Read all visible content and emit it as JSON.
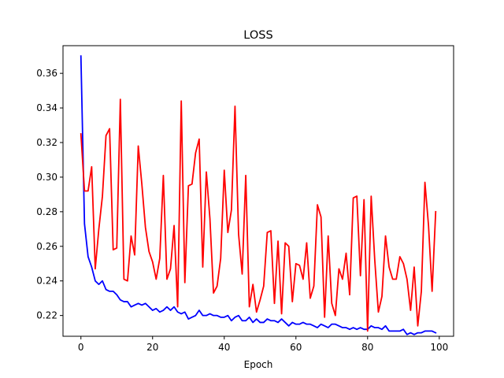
{
  "chart_data": {
    "type": "line",
    "title": "LOSS",
    "xlabel": "Epoch",
    "ylabel": "",
    "xlim": [
      -5,
      104
    ],
    "ylim": [
      0.208,
      0.376
    ],
    "xticks": [
      0,
      20,
      40,
      60,
      80,
      100
    ],
    "yticks": [
      0.22,
      0.24,
      0.26,
      0.28,
      0.3,
      0.32,
      0.34,
      0.36
    ],
    "ytick_labels": [
      "0.22",
      "0.24",
      "0.26",
      "0.28",
      "0.30",
      "0.32",
      "0.34",
      "0.36"
    ],
    "grid": false,
    "legend": false,
    "series": [
      {
        "color": "#0000ff",
        "x": [
          0,
          1,
          2,
          3,
          4,
          5,
          6,
          7,
          8,
          9,
          10,
          11,
          12,
          13,
          14,
          15,
          16,
          17,
          18,
          19,
          20,
          21,
          22,
          23,
          24,
          25,
          26,
          27,
          28,
          29,
          30,
          31,
          32,
          33,
          34,
          35,
          36,
          37,
          38,
          39,
          40,
          41,
          42,
          43,
          44,
          45,
          46,
          47,
          48,
          49,
          50,
          51,
          52,
          53,
          54,
          55,
          56,
          57,
          58,
          59,
          60,
          61,
          62,
          63,
          64,
          65,
          66,
          67,
          68,
          69,
          70,
          71,
          72,
          73,
          74,
          75,
          76,
          77,
          78,
          79,
          80,
          81,
          82,
          83,
          84,
          85,
          86,
          87,
          88,
          89,
          90,
          91,
          92,
          93,
          94,
          95,
          96,
          97,
          98,
          99
        ],
        "values": [
          0.37,
          0.273,
          0.254,
          0.248,
          0.24,
          0.238,
          0.24,
          0.235,
          0.234,
          0.234,
          0.232,
          0.229,
          0.228,
          0.228,
          0.225,
          0.226,
          0.227,
          0.226,
          0.227,
          0.225,
          0.223,
          0.224,
          0.222,
          0.223,
          0.225,
          0.223,
          0.225,
          0.222,
          0.221,
          0.222,
          0.218,
          0.219,
          0.22,
          0.223,
          0.22,
          0.22,
          0.221,
          0.22,
          0.22,
          0.219,
          0.219,
          0.22,
          0.217,
          0.219,
          0.22,
          0.217,
          0.217,
          0.219,
          0.216,
          0.218,
          0.216,
          0.216,
          0.218,
          0.217,
          0.217,
          0.216,
          0.218,
          0.216,
          0.214,
          0.216,
          0.215,
          0.215,
          0.216,
          0.215,
          0.215,
          0.214,
          0.213,
          0.215,
          0.214,
          0.213,
          0.215,
          0.215,
          0.214,
          0.213,
          0.213,
          0.212,
          0.213,
          0.212,
          0.213,
          0.212,
          0.212,
          0.214,
          0.213,
          0.213,
          0.212,
          0.214,
          0.211,
          0.211,
          0.211,
          0.211,
          0.212,
          0.209,
          0.21,
          0.209,
          0.21,
          0.21,
          0.211,
          0.211,
          0.211,
          0.21
        ]
      },
      {
        "color": "#ff0000",
        "x": [
          0,
          1,
          2,
          3,
          4,
          5,
          6,
          7,
          8,
          9,
          10,
          11,
          12,
          13,
          14,
          15,
          16,
          17,
          18,
          19,
          20,
          21,
          22,
          23,
          24,
          25,
          26,
          27,
          28,
          29,
          30,
          31,
          32,
          33,
          34,
          35,
          36,
          37,
          38,
          39,
          40,
          41,
          42,
          43,
          44,
          45,
          46,
          47,
          48,
          49,
          50,
          51,
          52,
          53,
          54,
          55,
          56,
          57,
          58,
          59,
          60,
          61,
          62,
          63,
          64,
          65,
          66,
          67,
          68,
          69,
          70,
          71,
          72,
          73,
          74,
          75,
          76,
          77,
          78,
          79,
          80,
          81,
          82,
          83,
          84,
          85,
          86,
          87,
          88,
          89,
          90,
          91,
          92,
          93,
          94,
          95,
          96,
          97,
          98,
          99
        ],
        "values": [
          0.325,
          0.292,
          0.292,
          0.306,
          0.247,
          0.27,
          0.289,
          0.324,
          0.328,
          0.258,
          0.259,
          0.345,
          0.241,
          0.24,
          0.266,
          0.255,
          0.318,
          0.296,
          0.271,
          0.257,
          0.251,
          0.241,
          0.253,
          0.301,
          0.241,
          0.247,
          0.272,
          0.225,
          0.344,
          0.239,
          0.295,
          0.296,
          0.314,
          0.322,
          0.248,
          0.303,
          0.276,
          0.233,
          0.237,
          0.253,
          0.304,
          0.268,
          0.281,
          0.341,
          0.267,
          0.244,
          0.301,
          0.225,
          0.238,
          0.222,
          0.229,
          0.237,
          0.268,
          0.269,
          0.227,
          0.263,
          0.221,
          0.262,
          0.26,
          0.228,
          0.25,
          0.249,
          0.241,
          0.262,
          0.23,
          0.237,
          0.284,
          0.277,
          0.219,
          0.266,
          0.227,
          0.22,
          0.247,
          0.241,
          0.256,
          0.232,
          0.288,
          0.289,
          0.243,
          0.287,
          0.211,
          0.289,
          0.252,
          0.222,
          0.231,
          0.266,
          0.248,
          0.241,
          0.241,
          0.254,
          0.25,
          0.241,
          0.223,
          0.248,
          0.214,
          0.234,
          0.297,
          0.272,
          0.234,
          0.28
        ]
      }
    ]
  }
}
